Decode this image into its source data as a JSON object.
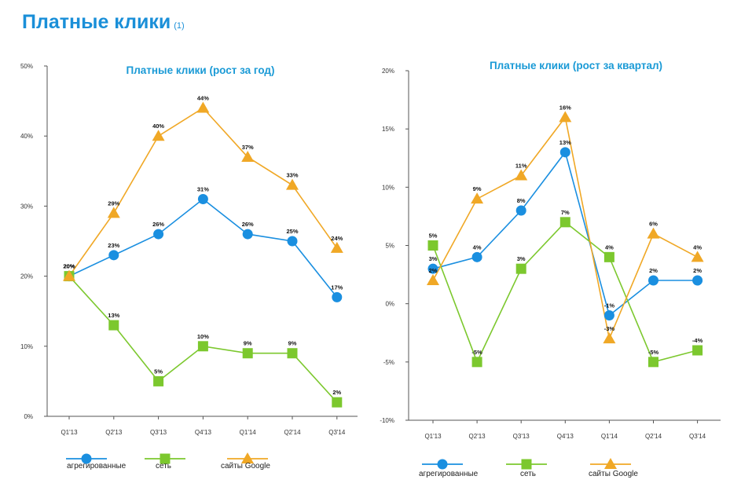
{
  "page": {
    "title": "Платные клики",
    "title_note": "(1)"
  },
  "colors": {
    "title": "#1a8fd8",
    "aggregated": "#1a8fe0",
    "network": "#7cc82e",
    "google_sites": "#f0a826"
  },
  "chart_data": [
    {
      "type": "line",
      "title": "Платные клики (рост за год)",
      "categories": [
        "Q1'13",
        "Q2'13",
        "Q3'13",
        "Q4'13",
        "Q1'14",
        "Q2'14",
        "Q3'14"
      ],
      "y_ticks": [
        "0%",
        "10%",
        "20%",
        "30%",
        "40%",
        "50%"
      ],
      "ylim": [
        0,
        50
      ],
      "grid": false,
      "legend_position": "bottom",
      "series": [
        {
          "name": "агрегированные",
          "marker": "circle",
          "color": "#1a8fe0",
          "values": [
            20,
            23,
            26,
            31,
            26,
            25,
            17
          ],
          "labels": [
            "20%",
            "23%",
            "26%",
            "31%",
            "26%",
            "25%",
            "17%"
          ]
        },
        {
          "name": "сеть",
          "marker": "square",
          "color": "#7cc82e",
          "values": [
            20,
            13,
            5,
            10,
            9,
            9,
            2
          ],
          "labels": [
            "20%",
            "13%",
            "5%",
            "10%",
            "9%",
            "9%",
            "2%"
          ]
        },
        {
          "name": "сайты Google",
          "marker": "triangle",
          "color": "#f0a826",
          "values": [
            20,
            29,
            40,
            44,
            37,
            33,
            24
          ],
          "labels": [
            "20%",
            "29%",
            "40%",
            "44%",
            "37%",
            "33%",
            "24%"
          ]
        }
      ]
    },
    {
      "type": "line",
      "title": "Платные клики (рост за квартал)",
      "categories": [
        "Q1'13",
        "Q2'13",
        "Q3'13",
        "Q4'13",
        "Q1'14",
        "Q2'14",
        "Q3'14"
      ],
      "y_ticks": [
        "-10%",
        "-5%",
        "0%",
        "5%",
        "10%",
        "15%",
        "20%"
      ],
      "ylim": [
        -10,
        20
      ],
      "grid": false,
      "legend_position": "bottom",
      "series": [
        {
          "name": "агрегированные",
          "marker": "circle",
          "color": "#1a8fe0",
          "values": [
            3,
            4,
            8,
            13,
            -1,
            2,
            2
          ],
          "labels": [
            "3%",
            "4%",
            "8%",
            "13%",
            "-1%",
            "2%",
            "2%"
          ]
        },
        {
          "name": "сеть",
          "marker": "square",
          "color": "#7cc82e",
          "values": [
            5,
            -5,
            3,
            7,
            4,
            -5,
            -4
          ],
          "labels": [
            "5%",
            "-5%",
            "3%",
            "7%",
            "4%",
            "-5%",
            "-4%"
          ]
        },
        {
          "name": "сайты Google",
          "marker": "triangle",
          "color": "#f0a826",
          "values": [
            2,
            9,
            11,
            16,
            -3,
            6,
            4
          ],
          "labels": [
            "2%",
            "9%",
            "11%",
            "16%",
            "-3%",
            "6%",
            "4%"
          ]
        }
      ]
    }
  ]
}
